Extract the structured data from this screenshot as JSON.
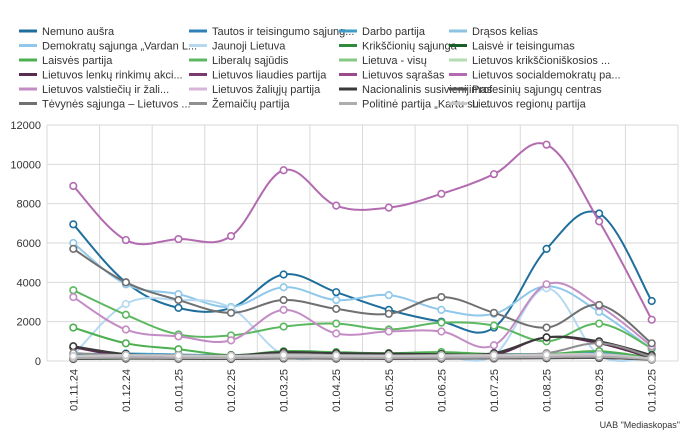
{
  "chart_data": {
    "type": "line",
    "title": "",
    "xlabel": "",
    "ylabel": "",
    "ylim": [
      0,
      12000
    ],
    "yticks": [
      0,
      2000,
      4000,
      6000,
      8000,
      10000,
      12000
    ],
    "categories": [
      "01.11.24",
      "01.12.24",
      "01.01.25",
      "01.02.25",
      "01.03.25",
      "01.04.25",
      "01.05.25",
      "01.06.25",
      "01.07.25",
      "01.08.25",
      "01.09.25",
      "01.10.25"
    ],
    "legend_position": "top",
    "source": "UAB \"Mediaskopas\"",
    "series": [
      {
        "name": "Nemuno aušra",
        "color": "#1f6e9c",
        "values": [
          6950,
          4000,
          2700,
          2700,
          4400,
          3500,
          2600,
          2000,
          1700,
          5700,
          7500,
          3050
        ]
      },
      {
        "name": "Tautos ir teisingumo sąjung...",
        "color": "#2f80b9",
        "values": [
          200,
          250,
          280,
          230,
          300,
          280,
          250,
          260,
          250,
          280,
          320,
          150
        ]
      },
      {
        "name": "Darbo partija",
        "color": "#3f9cc8",
        "values": [
          350,
          380,
          330,
          300,
          350,
          320,
          330,
          300,
          350,
          350,
          400,
          200
        ]
      },
      {
        "name": "Drąsos kelias",
        "color": "#8cc3e0",
        "values": [
          150,
          180,
          160,
          150,
          200,
          170,
          160,
          170,
          180,
          200,
          250,
          120
        ]
      },
      {
        "name": "Demokratų sąjunga „Vardan L...",
        "color": "#8fc8ea",
        "values": [
          6000,
          3900,
          3400,
          2750,
          3750,
          3100,
          3350,
          2600,
          2400,
          3800,
          2500,
          600
        ]
      },
      {
        "name": "Jaunoji Lietuva",
        "color": "#b5d9f0",
        "values": [
          300,
          2900,
          3100,
          2700,
          300,
          250,
          300,
          250,
          300,
          3700,
          300,
          200
        ]
      },
      {
        "name": "Krikščionių sąjunga",
        "color": "#2e8b3c",
        "values": [
          100,
          120,
          130,
          110,
          150,
          140,
          130,
          150,
          160,
          180,
          200,
          80
        ]
      },
      {
        "name": "Laisvė ir teisingumas",
        "color": "#1a5e2a",
        "values": [
          200,
          250,
          230,
          200,
          250,
          240,
          230,
          250,
          260,
          280,
          300,
          150
        ]
      },
      {
        "name": "Laisvės partija",
        "color": "#4caf50",
        "values": [
          1700,
          900,
          600,
          300,
          500,
          450,
          400,
          450,
          350,
          350,
          500,
          150
        ]
      },
      {
        "name": "Liberalų sąjūdis",
        "color": "#5cb860",
        "values": [
          3600,
          2350,
          1350,
          1300,
          1750,
          1900,
          1600,
          1950,
          1800,
          1000,
          1900,
          650
        ]
      },
      {
        "name": "Lietuva - visų",
        "color": "#86c886",
        "values": [
          250,
          300,
          250,
          200,
          300,
          250,
          240,
          250,
          260,
          300,
          350,
          100
        ]
      },
      {
        "name": "Lietuvos krikščioniškosios ...",
        "color": "#b3dcb0",
        "values": [
          150,
          170,
          160,
          150,
          180,
          170,
          160,
          170,
          180,
          190,
          200,
          90
        ]
      },
      {
        "name": "Lietuvos lenkų rinkimų akci...",
        "color": "#5b2a50",
        "values": [
          700,
          250,
          200,
          200,
          350,
          300,
          280,
          250,
          300,
          1200,
          900,
          150
        ]
      },
      {
        "name": "Lietuvos liaudies partija",
        "color": "#7a3a6e",
        "values": [
          100,
          150,
          120,
          110,
          130,
          120,
          110,
          120,
          130,
          150,
          160,
          70
        ]
      },
      {
        "name": "Lietuvos sąrašas",
        "color": "#9a4a8a",
        "values": [
          150,
          200,
          180,
          160,
          200,
          180,
          170,
          180,
          190,
          220,
          250,
          100
        ]
      },
      {
        "name": "Lietuvos socialdemokratų pa...",
        "color": "#b36bb0",
        "values": [
          8900,
          6150,
          6200,
          6350,
          9700,
          7900,
          7800,
          8500,
          9500,
          11000,
          7100,
          2100
        ]
      },
      {
        "name": "Lietuvos valstiečių ir žali...",
        "color": "#c38cc4",
        "values": [
          3250,
          1600,
          1250,
          1050,
          2600,
          1400,
          1500,
          1500,
          800,
          3900,
          2800,
          750
        ]
      },
      {
        "name": "Lietuvos žaliųjų partija",
        "color": "#d9b3d9",
        "values": [
          200,
          220,
          210,
          200,
          230,
          220,
          210,
          220,
          230,
          250,
          270,
          110
        ]
      },
      {
        "name": "Nacionalinis susivienijimas",
        "color": "#3a3a3a",
        "values": [
          750,
          350,
          300,
          280,
          450,
          400,
          380,
          350,
          400,
          1200,
          1000,
          300
        ]
      },
      {
        "name": "Profesinių sąjungų centras",
        "color": "#555555",
        "values": [
          100,
          120,
          110,
          100,
          130,
          120,
          110,
          120,
          130,
          140,
          150,
          70
        ]
      },
      {
        "name": "Tėvynės sąjunga – Lietuvos ...",
        "color": "#707070",
        "values": [
          5700,
          4000,
          3100,
          2450,
          3100,
          2650,
          2400,
          3250,
          2450,
          1700,
          2850,
          900
        ]
      },
      {
        "name": "Žemaičių partija",
        "color": "#8f8f8f",
        "values": [
          400,
          300,
          300,
          250,
          350,
          300,
          280,
          300,
          320,
          400,
          900,
          200
        ]
      },
      {
        "name": "Politinė partija „Kartu su ...",
        "color": "#adadad",
        "values": [
          150,
          170,
          160,
          150,
          180,
          170,
          160,
          170,
          180,
          200,
          220,
          90
        ]
      },
      {
        "name": "Lietuvos regionų partija",
        "color": "#c8c8c8",
        "values": [
          250,
          300,
          280,
          260,
          300,
          280,
          270,
          280,
          290,
          320,
          350,
          130
        ]
      }
    ]
  }
}
